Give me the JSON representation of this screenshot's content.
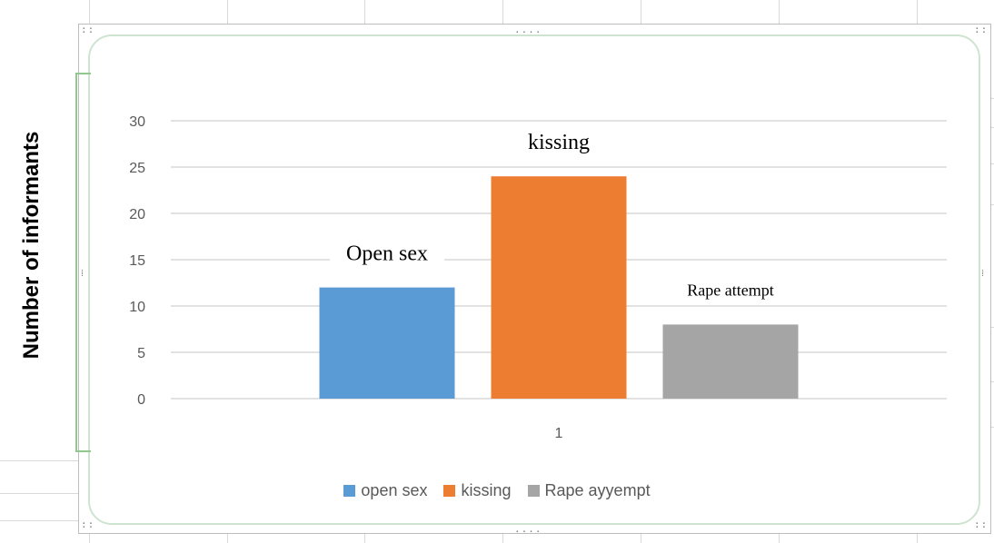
{
  "chart_data": {
    "type": "bar",
    "categories": [
      "1"
    ],
    "series": [
      {
        "name": "open sex",
        "values": [
          12
        ],
        "color": "#5b9bd5",
        "annotation": "Open sex"
      },
      {
        "name": "kissing",
        "values": [
          24
        ],
        "color": "#ed7d31",
        "annotation": "kissing"
      },
      {
        "name": "Rape ayyempt",
        "values": [
          8
        ],
        "color": "#a5a5a5",
        "annotation": "Rape attempt"
      }
    ],
    "ylabel": "Number of  informants",
    "ylim": [
      0,
      30
    ],
    "yticks": [
      0,
      5,
      10,
      15,
      20,
      25,
      30
    ],
    "grid": true,
    "legend_position": "bottom"
  }
}
